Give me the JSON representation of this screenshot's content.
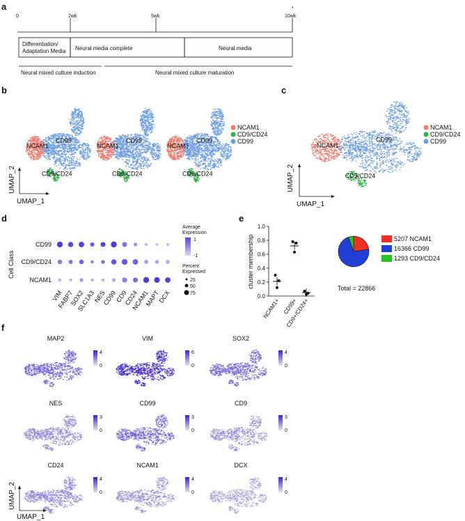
{
  "panels": {
    "a": "a",
    "b": "b",
    "c": "c",
    "d": "d",
    "e": "e",
    "f": "f"
  },
  "timeline": {
    "ticks": [
      "0",
      "2wk",
      "5wk",
      "10wk"
    ],
    "asterisk": "*",
    "stage_boxes": [
      "Differentiation/",
      "Adaptation Media",
      "Neural media complete",
      "Neural media"
    ],
    "phases": [
      "Neural mixed culture induction",
      "Neural mixed culture maturation"
    ]
  },
  "umap": {
    "xlabel": "UMAP_1",
    "ylabel": "UMAP_2",
    "cluster_labels": [
      "NCAM1",
      "CD99",
      "CD9/CD24"
    ],
    "legend": [
      {
        "label": "NCAM1",
        "color": "#f07b6e"
      },
      {
        "label": "CD9/CD24",
        "color": "#2eb34a"
      },
      {
        "label": "CD99",
        "color": "#6a9ce8"
      }
    ]
  },
  "dotplot": {
    "ylabel": "Cell Class",
    "rows": [
      "CD99",
      "CD9/CD24",
      "NCAM1"
    ],
    "genes": [
      "VIM",
      "FABP7",
      "SOX2",
      "SLC1A3",
      "NES",
      "CD99",
      "CD9",
      "CD24",
      "NCAM1",
      "MAPT",
      "DCX"
    ],
    "avg_title": [
      "Average",
      "Expression"
    ],
    "avg_ticks": [
      "1",
      "-1"
    ],
    "pct_title": [
      "Percent",
      "Expressed"
    ],
    "pct_ticks": [
      "25",
      "50",
      "75"
    ],
    "avg_expr": [
      [
        1.0,
        0.8,
        0.9,
        0.6,
        0.9,
        1.0,
        0.3,
        -0.2,
        -0.6,
        -0.7,
        -0.7
      ],
      [
        0.2,
        0.3,
        0.5,
        0.1,
        0.3,
        0.7,
        0.6,
        0.5,
        -0.2,
        -0.3,
        -0.4
      ],
      [
        -0.6,
        -0.5,
        -0.2,
        -0.4,
        -0.5,
        -0.4,
        0.1,
        0.4,
        1.0,
        1.0,
        0.9
      ]
    ],
    "pct_expr": [
      [
        72,
        55,
        62,
        30,
        48,
        75,
        45,
        22,
        10,
        8,
        10
      ],
      [
        35,
        28,
        38,
        12,
        22,
        55,
        72,
        62,
        25,
        22,
        25
      ],
      [
        15,
        10,
        18,
        8,
        12,
        18,
        52,
        45,
        75,
        68,
        62
      ]
    ]
  },
  "chart_data": {
    "type": "scatter",
    "title": "",
    "xlabel": "",
    "ylabel": "cluster membership",
    "categories": [
      "NCAM1+",
      "CD99+",
      "CD9+/CD24+"
    ],
    "series": [
      {
        "name": "NCAM1+",
        "values": [
          0.3,
          0.22,
          0.12
        ]
      },
      {
        "name": "CD99+",
        "values": [
          0.78,
          0.76,
          0.63
        ]
      },
      {
        "name": "CD9+/CD24+",
        "values": [
          0.07,
          0.04,
          0.025
        ]
      }
    ],
    "means": [
      0.21,
      0.72,
      0.05
    ],
    "ylim": [
      0,
      1.0
    ],
    "yticks": [
      "0.0",
      "0.2",
      "0.4",
      "0.6",
      "0.8",
      "1.0"
    ]
  },
  "pie": {
    "slices": [
      {
        "label": "5207 NCAM1",
        "value": 5207,
        "color": "#ee3124"
      },
      {
        "label": "16366 CD99",
        "value": 16366,
        "color": "#1f3fd6"
      },
      {
        "label": "1293 CD9/CD24",
        "value": 1293,
        "color": "#27c427"
      }
    ],
    "total_label": "Total = 22866"
  },
  "feature_plots": [
    {
      "gene": "MAP2",
      "scale": [
        "4",
        "0"
      ],
      "intensity": 0.55
    },
    {
      "gene": "VIM",
      "scale": [
        "6",
        "0"
      ],
      "intensity": 0.85
    },
    {
      "gene": "SOX2",
      "scale": [
        "4",
        "0"
      ],
      "intensity": 0.5
    },
    {
      "gene": "NES",
      "scale": [
        "3",
        "0"
      ],
      "intensity": 0.35
    },
    {
      "gene": "CD99",
      "scale": [
        "3",
        "0"
      ],
      "intensity": 0.5
    },
    {
      "gene": "CD9",
      "scale": [
        "3",
        "0"
      ],
      "intensity": 0.25
    },
    {
      "gene": "CD24",
      "scale": [
        "4",
        "0"
      ],
      "intensity": 0.35
    },
    {
      "gene": "NCAM1",
      "scale": [
        "4",
        "0"
      ],
      "intensity": 0.25
    },
    {
      "gene": "DCX",
      "scale": [
        "4",
        "0"
      ],
      "intensity": 0.15
    }
  ]
}
